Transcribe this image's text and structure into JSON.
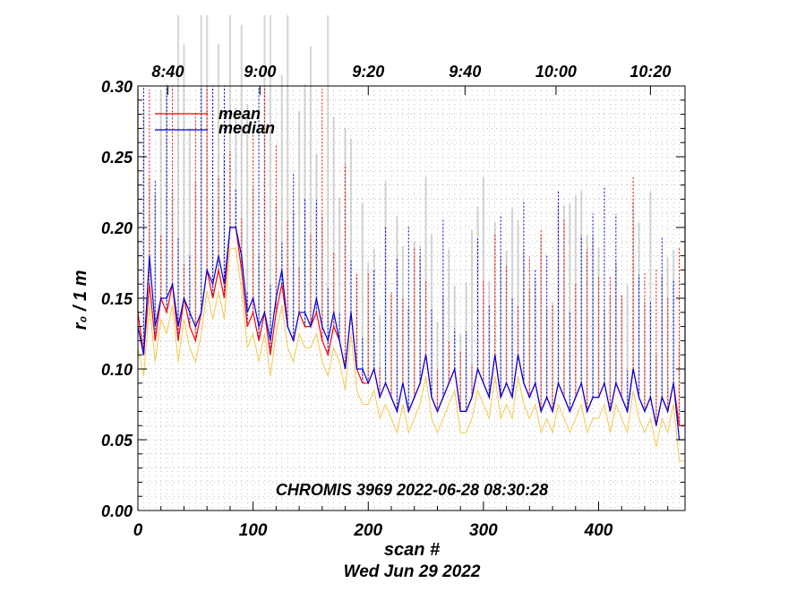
{
  "chart_data": {
    "type": "line",
    "title": "",
    "xlabel": "scan #",
    "ylabel": "r₀ / 1 m",
    "footer_label": "Wed Jun 29 2022",
    "annotation": "CHROMIS 3969 2022-06-28 08:30:28",
    "xlim": [
      0,
      475
    ],
    "ylim": [
      0.0,
      0.3
    ],
    "x_ticks": [
      "0",
      "100",
      "200",
      "300",
      "400"
    ],
    "y_ticks": [
      "0.00",
      "0.05",
      "0.10",
      "0.15",
      "0.20",
      "0.25",
      "0.30"
    ],
    "top_time_ticks": [
      {
        "label": "8:40",
        "scan": 26
      },
      {
        "label": "9:00",
        "scan": 106
      },
      {
        "label": "9:20",
        "scan": 200
      },
      {
        "label": "9:40",
        "scan": 284
      },
      {
        "label": "10:00",
        "scan": 363
      },
      {
        "label": "10:20",
        "scan": 445
      }
    ],
    "grid": true,
    "legend_position": "top-left",
    "colors": {
      "mean": "#ff0000",
      "median": "#0000dd",
      "minimum": "#f2c94c",
      "upper_envelope": "#c8c8c8"
    },
    "series": [
      {
        "name": "mean",
        "x": [
          0,
          5,
          10,
          15,
          20,
          25,
          30,
          35,
          40,
          45,
          50,
          55,
          60,
          65,
          70,
          75,
          80,
          85,
          90,
          95,
          100,
          105,
          110,
          115,
          120,
          125,
          130,
          135,
          140,
          145,
          150,
          155,
          160,
          165,
          170,
          175,
          180,
          185,
          190,
          195,
          200,
          205,
          210,
          215,
          220,
          225,
          230,
          235,
          240,
          245,
          250,
          255,
          260,
          265,
          270,
          275,
          280,
          285,
          290,
          295,
          300,
          305,
          310,
          315,
          320,
          325,
          330,
          335,
          340,
          345,
          350,
          355,
          360,
          365,
          370,
          375,
          380,
          385,
          390,
          395,
          400,
          405,
          410,
          415,
          420,
          425,
          430,
          435,
          440,
          445,
          450,
          455,
          460,
          465,
          470,
          475
        ],
        "values": [
          0.14,
          0.11,
          0.16,
          0.12,
          0.15,
          0.14,
          0.16,
          0.12,
          0.15,
          0.13,
          0.12,
          0.14,
          0.17,
          0.15,
          0.17,
          0.15,
          0.2,
          0.2,
          0.17,
          0.13,
          0.14,
          0.12,
          0.14,
          0.11,
          0.14,
          0.16,
          0.13,
          0.12,
          0.14,
          0.13,
          0.13,
          0.14,
          0.12,
          0.11,
          0.13,
          0.12,
          0.1,
          0.14,
          0.1,
          0.09,
          0.09,
          0.1,
          0.08,
          0.09,
          0.08,
          0.07,
          0.09,
          0.07,
          0.08,
          0.09,
          0.11,
          0.08,
          0.07,
          0.08,
          0.09,
          0.1,
          0.07,
          0.07,
          0.08,
          0.1,
          0.09,
          0.08,
          0.11,
          0.08,
          0.09,
          0.08,
          0.11,
          0.09,
          0.08,
          0.09,
          0.07,
          0.08,
          0.07,
          0.09,
          0.08,
          0.07,
          0.08,
          0.09,
          0.07,
          0.08,
          0.08,
          0.09,
          0.07,
          0.09,
          0.08,
          0.07,
          0.1,
          0.08,
          0.07,
          0.08,
          0.06,
          0.08,
          0.07,
          0.09,
          0.06,
          0.06
        ]
      },
      {
        "name": "median",
        "x": [
          0,
          5,
          10,
          15,
          20,
          25,
          30,
          35,
          40,
          45,
          50,
          55,
          60,
          65,
          70,
          75,
          80,
          85,
          90,
          95,
          100,
          105,
          110,
          115,
          120,
          125,
          130,
          135,
          140,
          145,
          150,
          155,
          160,
          165,
          170,
          175,
          180,
          185,
          190,
          195,
          200,
          205,
          210,
          215,
          220,
          225,
          230,
          235,
          240,
          245,
          250,
          255,
          260,
          265,
          270,
          275,
          280,
          285,
          290,
          295,
          300,
          305,
          310,
          315,
          320,
          325,
          330,
          335,
          340,
          345,
          350,
          355,
          360,
          365,
          370,
          375,
          380,
          385,
          390,
          395,
          400,
          405,
          410,
          415,
          420,
          425,
          430,
          435,
          440,
          445,
          450,
          455,
          460,
          465,
          470,
          475
        ],
        "values": [
          0.13,
          0.11,
          0.18,
          0.13,
          0.15,
          0.15,
          0.16,
          0.13,
          0.15,
          0.14,
          0.13,
          0.14,
          0.17,
          0.16,
          0.18,
          0.16,
          0.2,
          0.2,
          0.18,
          0.14,
          0.15,
          0.13,
          0.14,
          0.12,
          0.15,
          0.17,
          0.13,
          0.12,
          0.14,
          0.14,
          0.13,
          0.15,
          0.13,
          0.12,
          0.14,
          0.12,
          0.1,
          0.14,
          0.1,
          0.1,
          0.09,
          0.1,
          0.08,
          0.09,
          0.08,
          0.07,
          0.09,
          0.07,
          0.08,
          0.09,
          0.11,
          0.08,
          0.07,
          0.08,
          0.09,
          0.1,
          0.07,
          0.07,
          0.08,
          0.1,
          0.09,
          0.08,
          0.11,
          0.08,
          0.09,
          0.08,
          0.11,
          0.09,
          0.08,
          0.09,
          0.07,
          0.08,
          0.07,
          0.09,
          0.08,
          0.07,
          0.08,
          0.09,
          0.07,
          0.08,
          0.08,
          0.09,
          0.07,
          0.09,
          0.08,
          0.07,
          0.1,
          0.08,
          0.07,
          0.08,
          0.06,
          0.08,
          0.07,
          0.09,
          0.05,
          0.05
        ]
      }
    ]
  }
}
